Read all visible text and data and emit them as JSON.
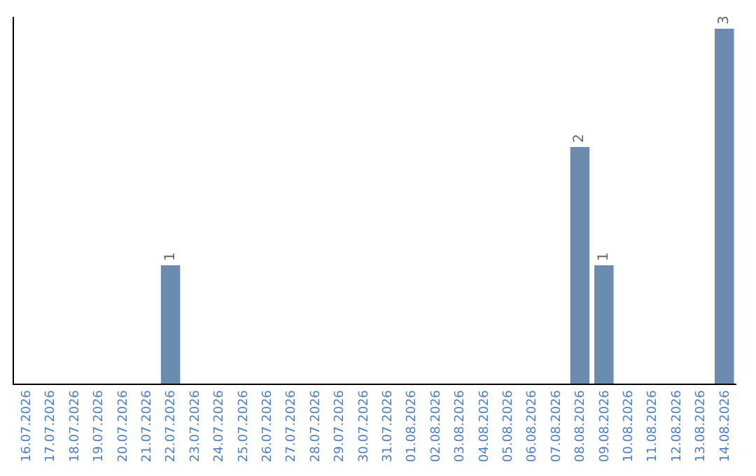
{
  "chart_data": {
    "type": "bar",
    "categories": [
      "16.07.2026",
      "17.07.2026",
      "18.07.2026",
      "19.07.2026",
      "20.07.2026",
      "21.07.2026",
      "22.07.2026",
      "23.07.2026",
      "24.07.2026",
      "25.07.2026",
      "26.07.2026",
      "27.07.2026",
      "28.07.2026",
      "29.07.2026",
      "30.07.2026",
      "31.07.2026",
      "01.08.2026",
      "02.08.2026",
      "03.08.2026",
      "04.08.2026",
      "05.08.2026",
      "06.08.2026",
      "07.08.2026",
      "08.08.2026",
      "09.08.2026",
      "10.08.2026",
      "11.08.2026",
      "12.08.2026",
      "13.08.2026",
      "14.08.2026"
    ],
    "values": [
      0,
      0,
      0,
      0,
      0,
      0,
      1,
      0,
      0,
      0,
      0,
      0,
      0,
      0,
      0,
      0,
      0,
      0,
      0,
      0,
      0,
      0,
      0,
      2,
      1,
      0,
      0,
      0,
      0,
      3
    ],
    "value_labels": [
      null,
      null,
      null,
      null,
      null,
      null,
      "1",
      null,
      null,
      null,
      null,
      null,
      null,
      null,
      null,
      null,
      null,
      null,
      null,
      null,
      null,
      null,
      null,
      "2",
      "1",
      null,
      null,
      null,
      null,
      "3"
    ],
    "color": "#6b8cae",
    "ylim": [
      0,
      3.1
    ],
    "tick_labels": "x"
  }
}
